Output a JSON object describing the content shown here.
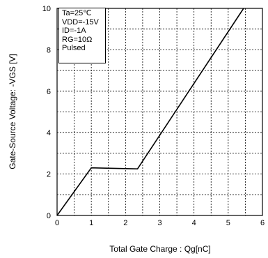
{
  "chart_data": {
    "type": "line",
    "title": "",
    "xlabel": "Total Gate Charge : Qg[nC]",
    "ylabel": "Gate-Source Voltage: -VGS [V]",
    "xlim": [
      0,
      6
    ],
    "ylim": [
      0,
      10
    ],
    "x_ticks": [
      0,
      1,
      2,
      3,
      4,
      5,
      6
    ],
    "y_ticks": [
      0,
      2,
      4,
      6,
      8,
      10
    ],
    "grid": true,
    "series": [
      {
        "values": [
          [
            0,
            0
          ],
          [
            1.0,
            2.3
          ],
          [
            2.35,
            2.25
          ],
          [
            5.45,
            10.0
          ]
        ]
      }
    ],
    "conditions": [
      "Ta=25℃",
      "VDD=-15V",
      "ID=-1A",
      "RG=10Ω",
      "Pulsed"
    ]
  }
}
